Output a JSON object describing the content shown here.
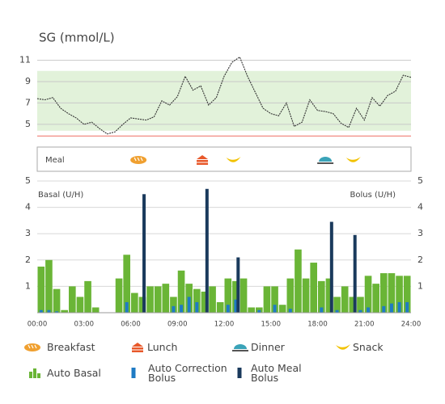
{
  "chart_data": [
    {
      "type": "line",
      "title": "SG (mmol/L)",
      "x": [
        0,
        0.5,
        1,
        1.5,
        2,
        2.5,
        3,
        3.5,
        4,
        4.5,
        5,
        5.5,
        6,
        6.5,
        7,
        7.5,
        8,
        8.5,
        9,
        9.5,
        10,
        10.5,
        11,
        11.5,
        12,
        12.5,
        13,
        13.5,
        14,
        14.5,
        15,
        15.5,
        16,
        16.5,
        17,
        17.5,
        18,
        18.5,
        19,
        19.5,
        20,
        20.5,
        21,
        21.5,
        22,
        22.5,
        23,
        23.5,
        24
      ],
      "series": [
        {
          "name": "SG",
          "color": "#333333",
          "values": [
            7.4,
            7.3,
            7.5,
            6.5,
            6.0,
            5.6,
            5.0,
            5.2,
            4.6,
            4.1,
            4.3,
            5.0,
            5.6,
            5.5,
            5.4,
            5.7,
            7.2,
            6.8,
            7.6,
            9.5,
            8.2,
            8.6,
            6.8,
            7.5,
            9.5,
            10.8,
            11.3,
            9.5,
            8.0,
            6.5,
            6.0,
            5.8,
            7.0,
            4.8,
            5.2,
            7.3,
            6.3,
            6.2,
            6.0,
            5.1,
            4.7,
            6.5,
            5.4,
            7.5,
            6.7,
            7.7,
            8.1,
            9.6,
            9.4
          ]
        }
      ],
      "xlim": [
        0,
        24
      ],
      "ylim": [
        3.4,
        11.8
      ],
      "yticks": [
        5,
        7,
        9,
        11
      ],
      "grid": true,
      "target_range": [
        4.4,
        10
      ],
      "target_color": "#e2f2da",
      "low_limit": 3.9,
      "low_color": "#f28b82"
    },
    {
      "type": "events",
      "title": "Meal",
      "xlim": [
        0,
        24
      ],
      "series": [
        {
          "name": "Breakfast",
          "color": "#f0a030",
          "x": [
            6.5
          ]
        },
        {
          "name": "Lunch",
          "color": "#e8582a",
          "x": [
            10.6
          ]
        },
        {
          "name": "Dinner",
          "color": "#3aa3b8",
          "x": [
            18.5
          ]
        },
        {
          "name": "Snack",
          "color": "#f2c200",
          "x": [
            12.6,
            20.3
          ]
        }
      ]
    },
    {
      "type": "bar",
      "y_label": "Basal (U/H)",
      "y2_label": "Bolus (U/H)",
      "xlim": [
        0,
        24
      ],
      "xticks": [
        {
          "value": 0,
          "label": "00:00"
        },
        {
          "value": 3,
          "label": "03:00"
        },
        {
          "value": 6,
          "label": "06:00"
        },
        {
          "value": 9,
          "label": "09:00"
        },
        {
          "value": 12,
          "label": "12:00"
        },
        {
          "value": 15,
          "label": "15:00"
        },
        {
          "value": 18,
          "label": "18:00"
        },
        {
          "value": 21,
          "label": "21:00"
        },
        {
          "value": 24,
          "label": "24:00"
        }
      ],
      "ylim": [
        0,
        5
      ],
      "yticks": [
        1,
        2,
        3,
        4,
        5
      ],
      "y2lim": [
        0,
        5
      ],
      "y2ticks": [
        1,
        2,
        3,
        4,
        5
      ],
      "grid": true,
      "series": [
        {
          "name": "Auto Basal",
          "color": "#6ab536",
          "bins": [
            0,
            0.5,
            1,
            1.5,
            2,
            2.5,
            3,
            3.5,
            4,
            4.5,
            5,
            5.5,
            6,
            6.5,
            7,
            7.5,
            8,
            8.5,
            9,
            9.5,
            10,
            10.5,
            11,
            11.5,
            12,
            12.5,
            13,
            13.5,
            14,
            14.5,
            15,
            15.5,
            16,
            16.5,
            17,
            17.5,
            18,
            18.5,
            19,
            19.5,
            20,
            20.5,
            21,
            21.5,
            22,
            22.5,
            23,
            23.5,
            24
          ],
          "values": [
            1.75,
            2.0,
            0.9,
            0.1,
            1.0,
            0.6,
            1.2,
            0.2,
            0,
            0,
            1.3,
            2.2,
            0.75,
            0.6,
            1.0,
            1.0,
            1.1,
            0.6,
            1.6,
            1.1,
            0.9,
            0.8,
            1.0,
            0.4,
            1.3,
            1.2,
            1.3,
            0.2,
            0.2,
            1.0,
            1.0,
            0.3,
            1.3,
            2.4,
            1.3,
            1.9,
            1.2,
            1.3,
            0.6,
            1.0,
            0.6,
            0.6,
            1.4,
            1.1,
            1.5,
            1.5,
            1.4,
            1.4
          ]
        },
        {
          "name": "Auto Correction Bolus",
          "color": "#1f7bc4",
          "axis": "y2",
          "x": [
            0.25,
            0.75,
            1.25,
            5.75,
            8.75,
            9.25,
            9.75,
            10.25,
            12.25,
            12.75,
            14.25,
            15.25,
            16.25,
            18.25,
            19.25,
            20.75,
            21.25,
            22.25,
            22.75,
            23.25,
            23.75
          ],
          "values": [
            0.1,
            0.1,
            0.05,
            0.4,
            0.25,
            0.3,
            0.6,
            0.4,
            0.3,
            0.5,
            0.1,
            0.3,
            0.15,
            0.2,
            0.1,
            0.1,
            0.2,
            0.25,
            0.35,
            0.4,
            0.4
          ]
        },
        {
          "name": "Auto Meal Bolus",
          "color": "#1a3a5c",
          "axis": "y2",
          "x": [
            6.86,
            10.9,
            12.9,
            18.9,
            20.4
          ],
          "values": [
            4.5,
            4.7,
            2.1,
            3.45,
            2.95
          ]
        }
      ]
    }
  ]
}
